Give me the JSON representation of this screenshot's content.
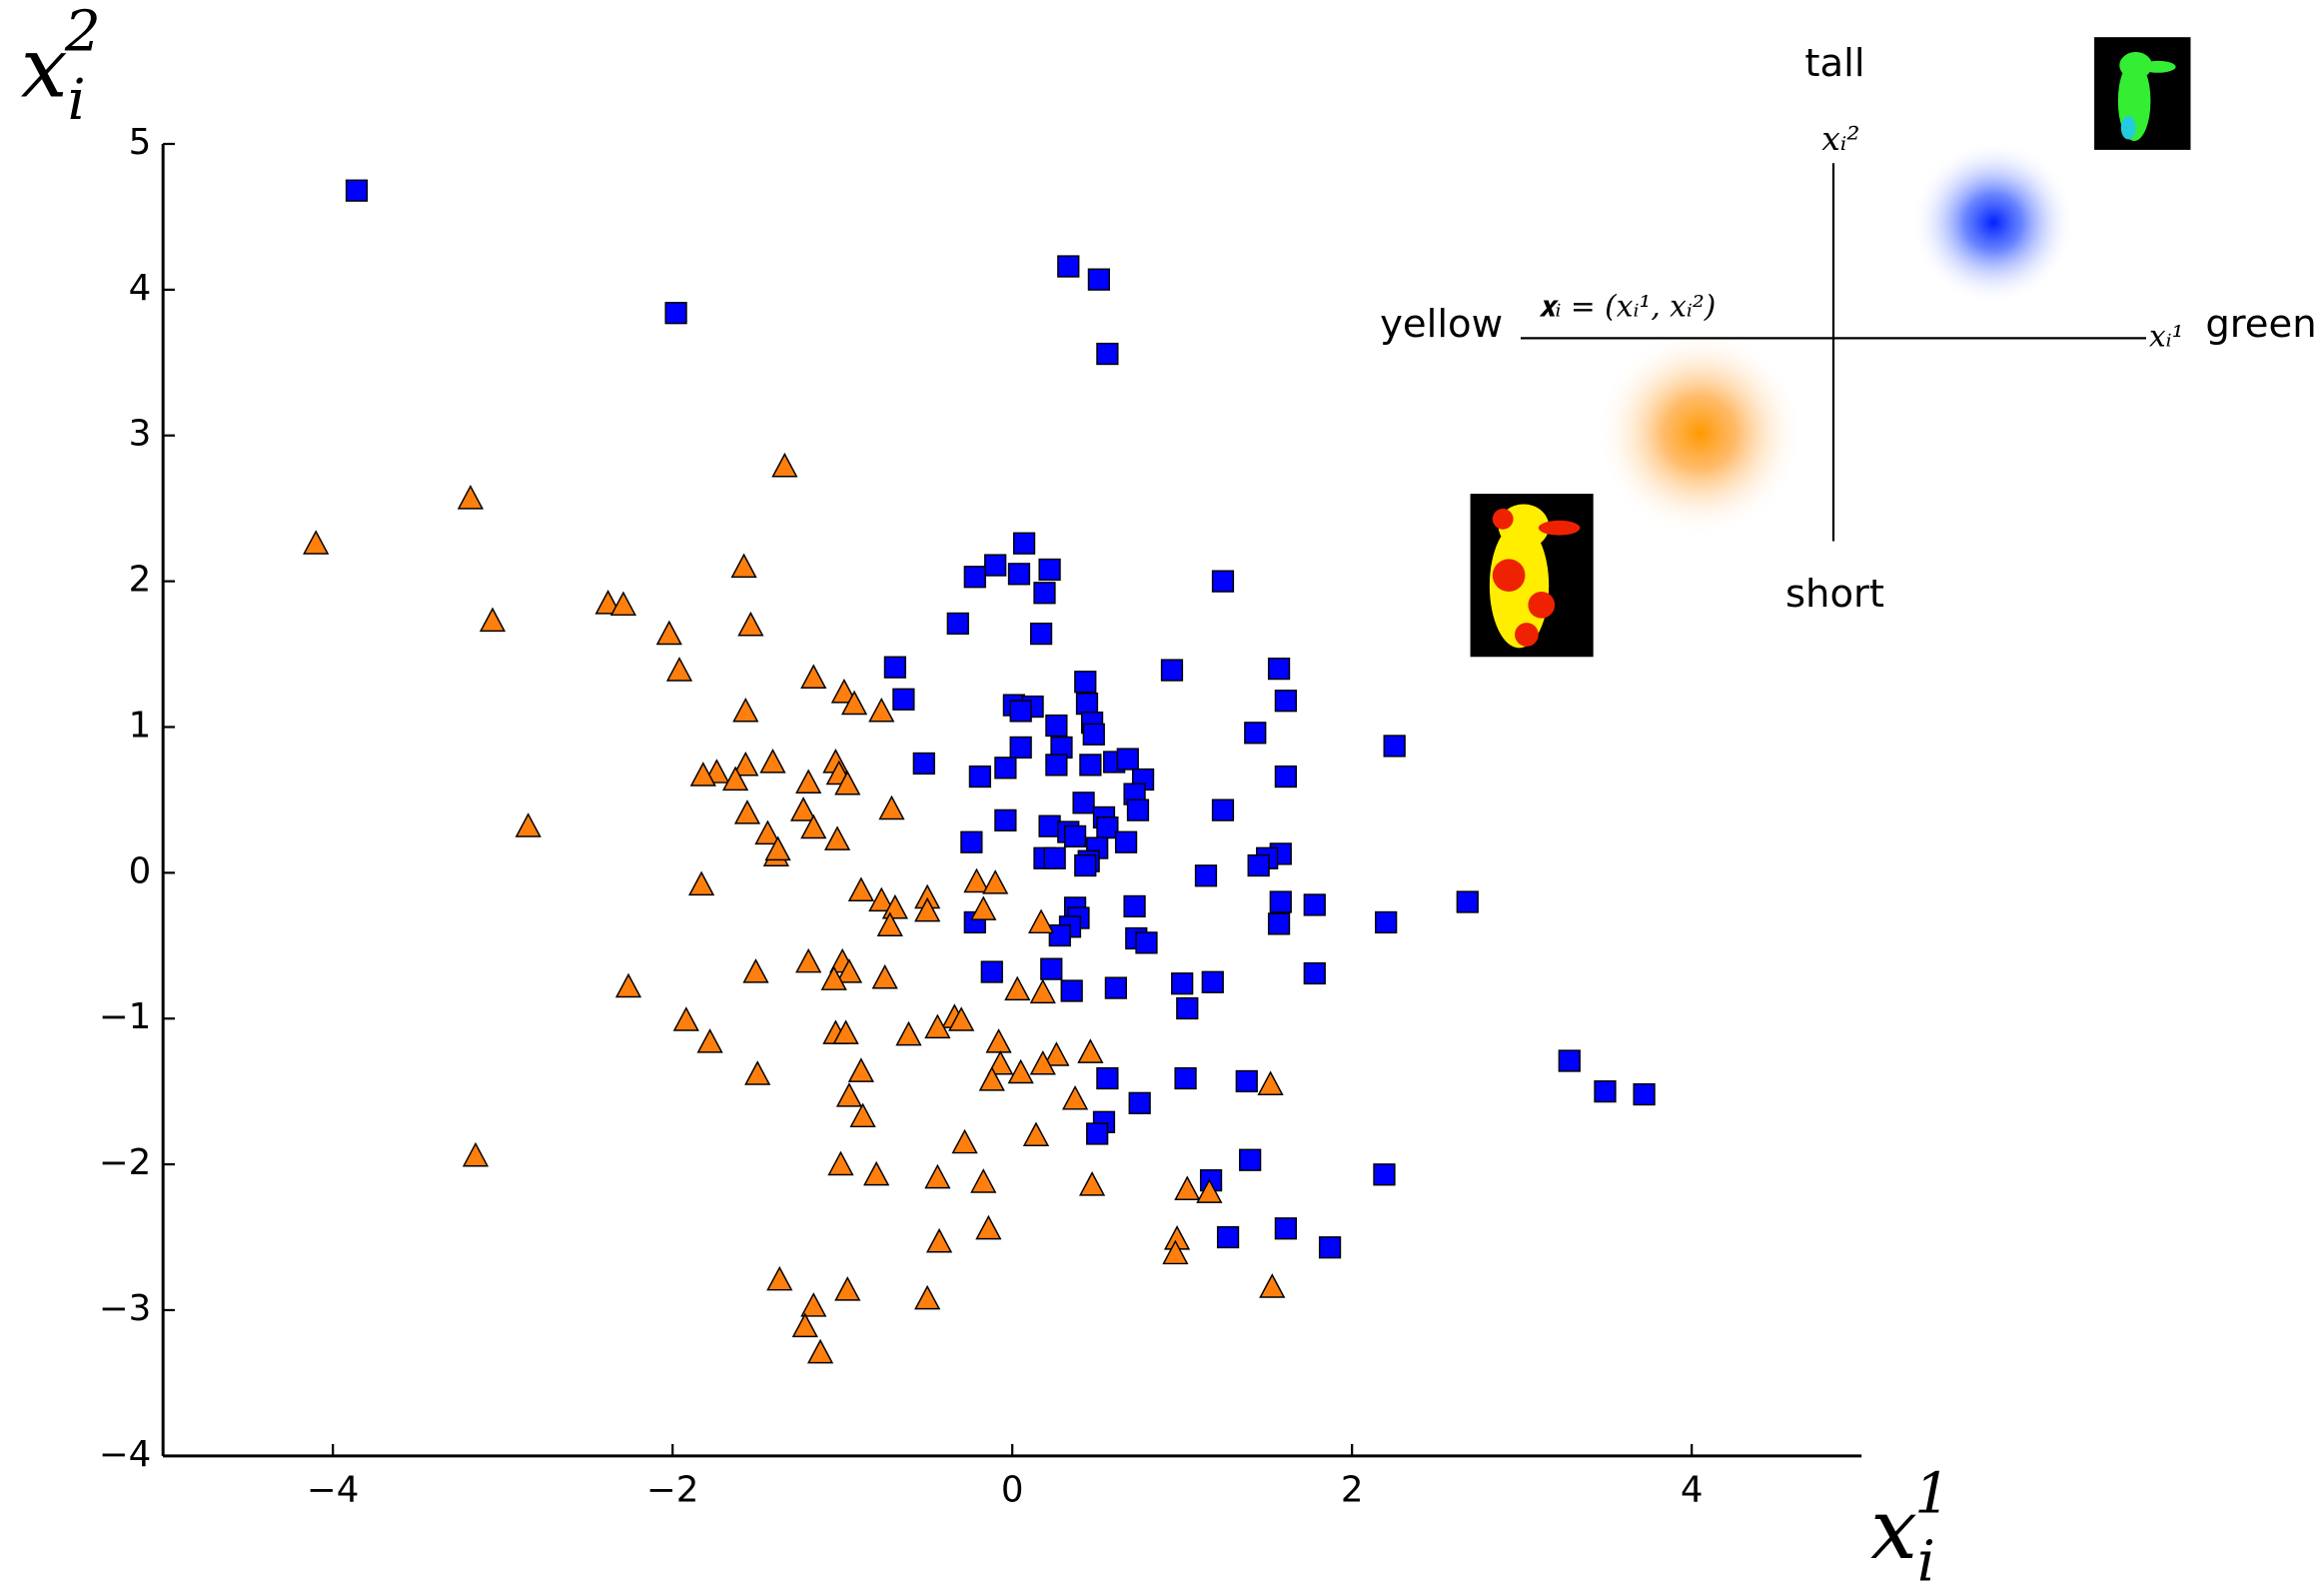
{
  "chart_data": {
    "type": "scatter",
    "xlabel": {
      "base": "x",
      "sub": "i",
      "sup": "1"
    },
    "ylabel": {
      "base": "x",
      "sub": "i",
      "sup": "2"
    },
    "xlim": [
      -5,
      5
    ],
    "ylim": [
      -4,
      5
    ],
    "xticks": [
      {
        "value": -4,
        "label": "−4"
      },
      {
        "value": -2,
        "label": "−2"
      },
      0,
      2,
      4
    ],
    "yticks": [
      {
        "value": -4,
        "label": "−4"
      },
      {
        "value": -3,
        "label": "−3"
      },
      {
        "value": -2,
        "label": "−2"
      },
      {
        "value": -1,
        "label": "−1"
      },
      0,
      1,
      2,
      3,
      4,
      5
    ],
    "series": [
      {
        "color": "#0000ff",
        "marker": "square",
        "x": [
          -3.86,
          -1.98,
          0.33,
          0.51,
          0.56,
          0.07,
          -0.1,
          -0.22,
          0.04,
          0.22,
          0.19,
          1.24,
          -0.32,
          0.17,
          -0.69,
          0.94,
          1.57,
          -0.64,
          0.43,
          1.61,
          0.01,
          0.12,
          0.44,
          0.05,
          0.26,
          0.47,
          0.48,
          1.43,
          0.29,
          0.05,
          2.25,
          -0.52,
          0.26,
          -0.04,
          0.46,
          0.6,
          0.68,
          -0.19,
          0.77,
          1.61,
          0.72,
          0.74,
          0.42,
          1.24,
          -0.04,
          0.54,
          0.22,
          0.33,
          0.56,
          0.37,
          -0.24,
          0.67,
          0.5,
          1.58,
          1.5,
          0.19,
          0.25,
          0.45,
          0.43,
          1.45,
          1.14,
          1.58,
          1.78,
          2.68,
          0.72,
          0.37,
          0.39,
          -0.22,
          1.57,
          2.2,
          0.34,
          0.28,
          0.73,
          0.79,
          -0.12,
          0.23,
          1.78,
          1.18,
          1.0,
          0.35,
          0.61,
          1.03,
          3.28,
          3.49,
          3.72,
          0.56,
          1.02,
          1.38,
          0.75,
          0.54,
          0.5,
          1.4,
          2.19,
          1.17,
          1.61,
          1.27,
          1.87
        ],
        "values": [
          4.68,
          3.84,
          4.16,
          4.07,
          3.56,
          2.26,
          2.11,
          2.03,
          2.05,
          2.08,
          1.92,
          2.0,
          1.71,
          1.64,
          1.41,
          1.39,
          1.4,
          1.19,
          1.31,
          1.18,
          1.15,
          1.14,
          1.16,
          1.11,
          1.01,
          1.03,
          0.95,
          0.96,
          0.86,
          0.86,
          0.87,
          0.75,
          0.74,
          0.72,
          0.74,
          0.76,
          0.78,
          0.66,
          0.64,
          0.66,
          0.54,
          0.43,
          0.48,
          0.43,
          0.36,
          0.38,
          0.32,
          0.28,
          0.31,
          0.25,
          0.21,
          0.21,
          0.17,
          0.13,
          0.1,
          0.1,
          0.1,
          0.08,
          0.05,
          0.05,
          -0.02,
          -0.2,
          -0.22,
          -0.2,
          -0.23,
          -0.24,
          -0.31,
          -0.34,
          -0.35,
          -0.34,
          -0.37,
          -0.43,
          -0.45,
          -0.48,
          -0.68,
          -0.66,
          -0.69,
          -0.75,
          -0.76,
          -0.81,
          -0.79,
          -0.93,
          -1.29,
          -1.5,
          -1.52,
          -1.41,
          -1.41,
          -1.43,
          -1.58,
          -1.71,
          -1.79,
          -1.97,
          -2.07,
          -2.11,
          -2.44,
          -2.5,
          -2.57
        ]
      },
      {
        "color": "#ff7f0e",
        "marker": "triangle",
        "x": [
          -1.34,
          -3.19,
          -4.1,
          -3.06,
          -1.58,
          -2.38,
          -2.29,
          -1.54,
          -2.02,
          -1.96,
          -1.17,
          -0.99,
          -0.93,
          -0.77,
          -1.57,
          -1.41,
          -1.57,
          -1.74,
          -1.82,
          -1.63,
          -1.04,
          -1.02,
          -1.2,
          -0.97,
          -0.71,
          -1.56,
          -1.23,
          -2.85,
          -1.44,
          -1.17,
          -1.03,
          -1.39,
          -1.38,
          -1.83,
          -0.89,
          -0.21,
          -0.1,
          -0.77,
          -0.5,
          -0.69,
          -0.5,
          -0.17,
          -0.72,
          0.17,
          -1.2,
          -1.0,
          -0.96,
          -1.51,
          -0.75,
          -1.05,
          -2.26,
          0.03,
          0.18,
          -1.92,
          -0.34,
          -0.3,
          -0.44,
          -0.61,
          -1.04,
          -0.98,
          -1.78,
          -0.08,
          0.26,
          0.46,
          -0.07,
          0.18,
          -1.5,
          0.05,
          -0.12,
          -0.89,
          1.52,
          -0.96,
          0.37,
          -0.88,
          0.14,
          -0.28,
          -3.16,
          -1.01,
          -0.8,
          -0.44,
          -0.17,
          0.47,
          1.03,
          1.16,
          -0.14,
          -0.43,
          0.97,
          0.96,
          -1.37,
          1.53,
          -0.97,
          -0.5,
          -1.17,
          -1.22,
          -1.13
        ],
        "values": [
          2.78,
          2.56,
          2.25,
          1.72,
          2.09,
          1.84,
          1.83,
          1.69,
          1.63,
          1.38,
          1.33,
          1.23,
          1.15,
          1.1,
          1.1,
          0.75,
          0.73,
          0.68,
          0.66,
          0.63,
          0.75,
          0.67,
          0.61,
          0.6,
          0.43,
          0.4,
          0.42,
          0.31,
          0.26,
          0.3,
          0.22,
          0.11,
          0.15,
          -0.09,
          -0.13,
          -0.07,
          -0.08,
          -0.2,
          -0.18,
          -0.25,
          -0.27,
          -0.26,
          -0.37,
          -0.35,
          -0.62,
          -0.62,
          -0.69,
          -0.69,
          -0.73,
          -0.74,
          -0.79,
          -0.81,
          -0.83,
          -1.02,
          -1.0,
          -1.02,
          -1.07,
          -1.12,
          -1.11,
          -1.11,
          -1.17,
          -1.17,
          -1.26,
          -1.24,
          -1.32,
          -1.32,
          -1.39,
          -1.38,
          -1.43,
          -1.37,
          -1.46,
          -1.54,
          -1.56,
          -1.68,
          -1.81,
          -1.86,
          -1.95,
          -2.01,
          -2.08,
          -2.1,
          -2.13,
          -2.15,
          -2.18,
          -2.2,
          -2.45,
          -2.54,
          -2.52,
          -2.62,
          -2.8,
          -2.85,
          -2.87,
          -2.93,
          -2.98,
          -3.12,
          -3.3
        ]
      }
    ]
  },
  "inset": {
    "top_label": "tall",
    "bottom_label": "short",
    "left_label": "yellow",
    "right_label": "green",
    "vertical_axis_label": "xᵢ²",
    "horizontal_axis_label": "xᵢ¹",
    "point_label": "𝐱ᵢ = (xᵢ¹, xᵢ²)"
  }
}
